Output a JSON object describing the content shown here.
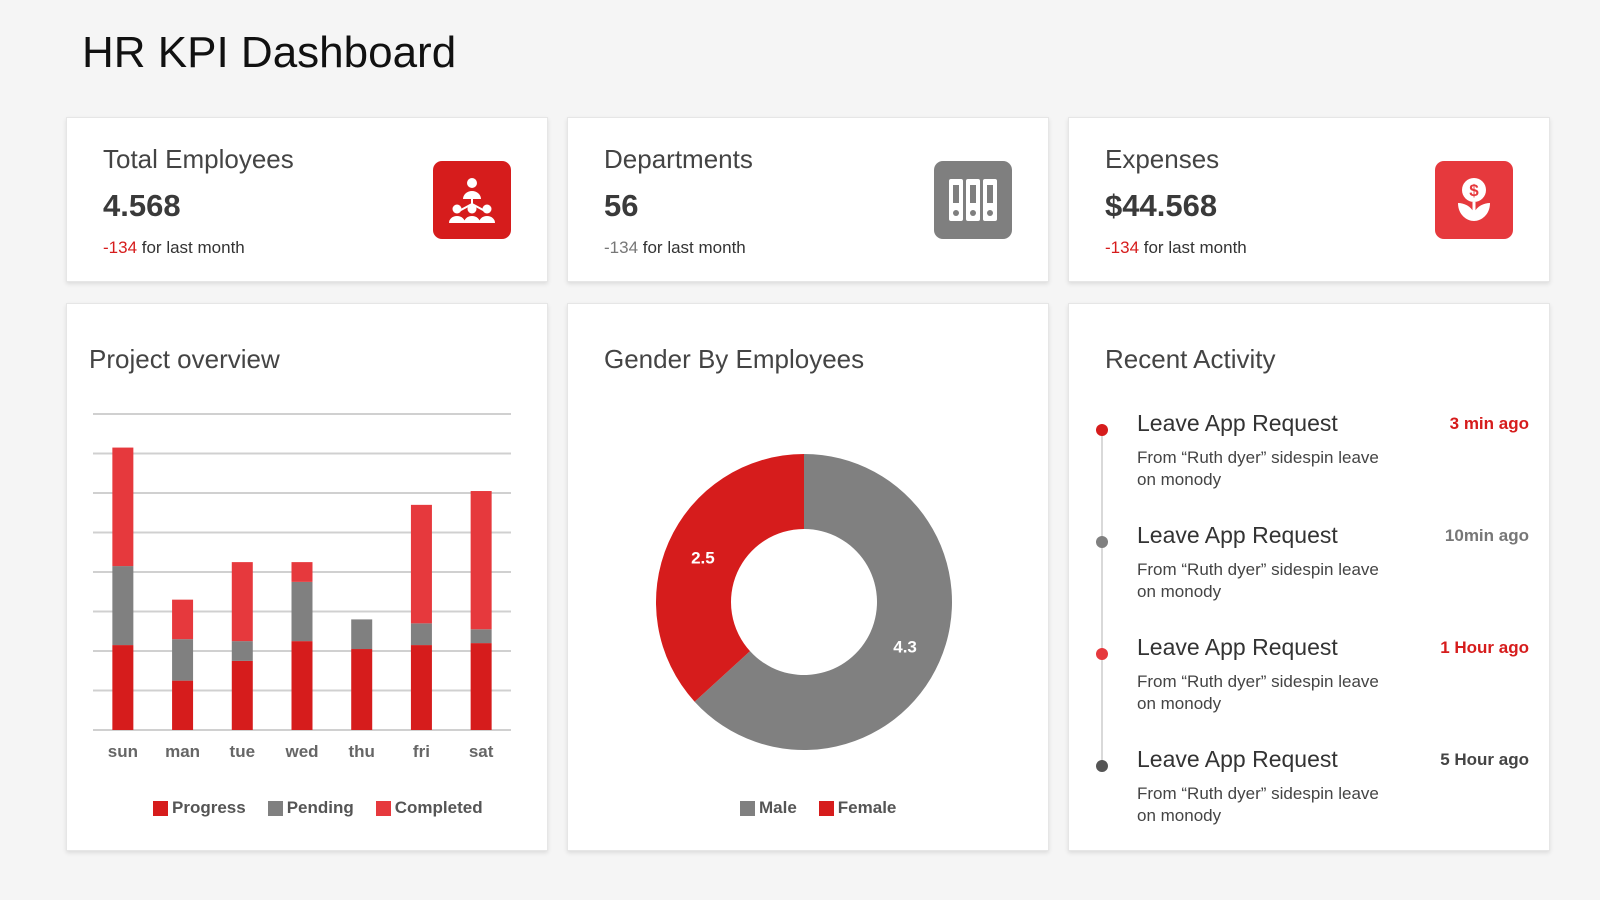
{
  "page": {
    "title": "HR KPI Dashboard"
  },
  "colors": {
    "red": "#d61c1c",
    "lightRed": "#e6393d",
    "gray": "#808080",
    "iconGray": "#7f7f7f"
  },
  "kpis": [
    {
      "title": "Total Employees",
      "value": "4.568",
      "delta": "-134",
      "suffix": " for last month",
      "icon": "organization-icon"
    },
    {
      "title": "Departments",
      "value": "56",
      "delta": "-134",
      "suffix": " for last month",
      "icon": "binders-icon"
    },
    {
      "title": "Expenses",
      "value": "$44.568",
      "delta": "-134",
      "suffix": " for last month",
      "icon": "money-plant-icon"
    }
  ],
  "project": {
    "title": "Project overview",
    "legend": [
      "Progress",
      "Pending",
      "Completed"
    ],
    "chart_data": {
      "type": "bar",
      "stacked": true,
      "categories": [
        "sun",
        "man",
        "tue",
        "wed",
        "thu",
        "fri",
        "sat"
      ],
      "series": [
        {
          "name": "Progress",
          "color": "#d61c1c",
          "values": [
            21.5,
            12.5,
            17.5,
            22.5,
            20.5,
            21.5,
            22
          ]
        },
        {
          "name": "Pending",
          "color": "#808080",
          "values": [
            20,
            10.5,
            5,
            15,
            7.5,
            5.5,
            3.5
          ]
        },
        {
          "name": "Completed",
          "color": "#e6393d",
          "values": [
            30,
            10,
            20,
            5,
            0,
            30,
            35
          ]
        }
      ],
      "ylim": [
        0,
        80
      ],
      "grid": true,
      "legend_position": "bottom"
    }
  },
  "gender": {
    "title": "Gender By Employees",
    "legend": [
      "Male",
      "Female"
    ],
    "chart_data": {
      "type": "pie",
      "donut": true,
      "labels": [
        "Male",
        "Female"
      ],
      "values": [
        4.3,
        2.5
      ],
      "colors": [
        "#808080",
        "#d61c1c"
      ],
      "data_labels": [
        "4.3",
        "2.5"
      ],
      "legend_position": "bottom"
    }
  },
  "activity": {
    "title": "Recent Activity",
    "items": [
      {
        "title": "Leave App Request",
        "time": "3 min ago",
        "desc": "From “Ruth dyer” sidespin leave on monody",
        "accent": "red"
      },
      {
        "title": "Leave App Request",
        "time": "10min ago",
        "desc": "From “Ruth dyer” sidespin leave on monody",
        "accent": "gray"
      },
      {
        "title": "Leave App Request",
        "time": "1 Hour ago",
        "desc": "From “Ruth dyer” sidespin leave on monody",
        "accent": "red"
      },
      {
        "title": "Leave App Request",
        "time": "5 Hour ago",
        "desc": "From “Ruth dyer” sidespin leave on monody",
        "accent": "dark"
      }
    ]
  }
}
